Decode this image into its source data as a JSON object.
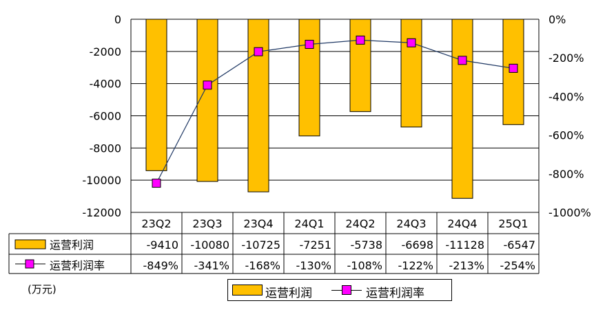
{
  "chart_data": {
    "type": "bar",
    "categories": [
      "23Q2",
      "23Q3",
      "23Q4",
      "24Q1",
      "24Q2",
      "24Q3",
      "24Q4",
      "25Q1"
    ],
    "series": [
      {
        "name": "运营利润",
        "type": "bar",
        "axis": "left",
        "values": [
          -9410,
          -10080,
          -10725,
          -7251,
          -5738,
          -6698,
          -11128,
          -6547
        ],
        "labels": [
          "-9410",
          "-10080",
          "-10725",
          "-7251",
          "-5738",
          "-6698",
          "-11128",
          "-6547"
        ]
      },
      {
        "name": "运营利润率",
        "type": "line",
        "axis": "right",
        "values": [
          -849,
          -341,
          -168,
          -130,
          -108,
          -122,
          -213,
          -254
        ],
        "labels": [
          "-849%",
          "-341%",
          "-168%",
          "-130%",
          "-108%",
          "-122%",
          "-213%",
          "-254%"
        ]
      }
    ],
    "y_left": {
      "ylim": [
        -12000,
        0
      ],
      "ticks": [
        "0",
        "-2000",
        "-4000",
        "-6000",
        "-8000",
        "-10000",
        "-12000"
      ],
      "tick_values": [
        0,
        -2000,
        -4000,
        -6000,
        -8000,
        -10000,
        -12000
      ]
    },
    "y_right": {
      "ylim": [
        -1000,
        0
      ],
      "ticks": [
        "0%",
        "-200%",
        "-400%",
        "-600%",
        "-800%",
        "-1000%"
      ],
      "tick_values": [
        0,
        -200,
        -400,
        -600,
        -800,
        -1000
      ]
    },
    "unit": "(万元)",
    "grid": true,
    "legend_position": "bottom",
    "colors": {
      "bar": "#FFC000",
      "line": "#1F3864",
      "marker": "#FF00FF"
    }
  }
}
